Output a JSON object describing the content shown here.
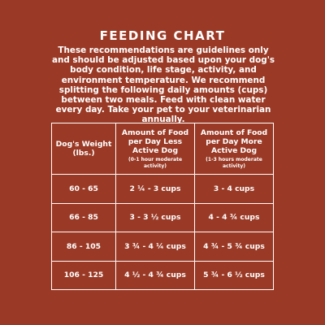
{
  "title": "FEEDING CHART",
  "intro": "These recommendations are guidelines only and should be adjusted based upon your dog's body condition, life stage, activity, and environment temperature. We recommend splitting the following daily amounts (cups) between two meals. Feed with clean water every day. Take your pet to your veterinarian annually.",
  "table": {
    "headers": [
      {
        "main": "Dog's Weight (lbs.)",
        "sub": ""
      },
      {
        "main": "Amount of Food per Day Less Active Dog",
        "sub": "(0-1 hour moderate activity)"
      },
      {
        "main": "Amount of Food per Day More Active Dog",
        "sub": "(1-3 hours moderate activity)"
      }
    ],
    "rows": [
      [
        "60 - 65",
        "2 ¼ - 3 cups",
        "3 - 4 cups"
      ],
      [
        "66 - 85",
        "3 - 3 ½ cups",
        "4 - 4 ¾ cups"
      ],
      [
        "86 - 105",
        "3 ¾ - 4 ¼ cups",
        "4 ¾ - 5 ¾ cups"
      ],
      [
        "106 - 125",
        "4 ½ - 4 ¾ cups",
        "5 ¾ - 6 ½ cups"
      ]
    ]
  }
}
